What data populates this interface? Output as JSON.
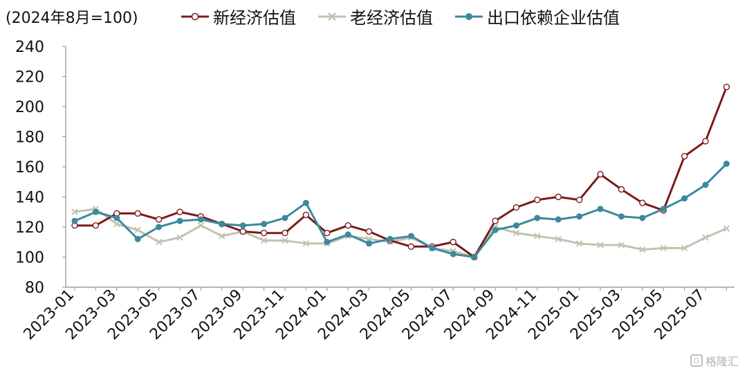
{
  "chart_data": {
    "type": "line",
    "unit_label": "(2024年8月=100)",
    "ylim": [
      80,
      240
    ],
    "yticks": [
      80,
      100,
      120,
      140,
      160,
      180,
      200,
      220,
      240
    ],
    "x": [
      "2023-01",
      "2023-02",
      "2023-03",
      "2023-04",
      "2023-05",
      "2023-06",
      "2023-07",
      "2023-08",
      "2023-09",
      "2023-10",
      "2023-11",
      "2023-12",
      "2024-01",
      "2024-02",
      "2024-03",
      "2024-04",
      "2024-05",
      "2024-06",
      "2024-07",
      "2024-08",
      "2024-09",
      "2024-10",
      "2024-11",
      "2024-12",
      "2025-01",
      "2025-02",
      "2025-03",
      "2025-04",
      "2025-05",
      "2025-06",
      "2025-07",
      "2025-08"
    ],
    "xtick_labels": [
      "2023-01",
      "2023-03",
      "2023-05",
      "2023-07",
      "2023-09",
      "2023-11",
      "2024-01",
      "2024-03",
      "2024-05",
      "2024-07",
      "2024-09",
      "2024-11",
      "2025-01",
      "2025-03",
      "2025-05",
      "2025-07"
    ],
    "grid": false,
    "legend_position": "top",
    "series": [
      {
        "name": "新经济估值",
        "color": "#7b1a1a",
        "marker": "open-circle",
        "values": [
          121,
          121,
          129,
          129,
          125,
          130,
          127,
          122,
          117,
          116,
          116,
          128,
          116,
          121,
          117,
          111,
          107,
          107,
          110,
          100,
          124,
          133,
          138,
          140,
          138,
          155,
          145,
          136,
          131,
          167,
          177,
          213
        ]
      },
      {
        "name": "老经济估值",
        "color": "#c2c2b2",
        "marker": "x",
        "values": [
          130,
          132,
          122,
          118,
          110,
          113,
          121,
          114,
          117,
          111,
          111,
          109,
          109,
          114,
          112,
          110,
          113,
          106,
          104,
          100,
          120,
          116,
          114,
          112,
          109,
          108,
          108,
          105,
          106,
          106,
          113,
          119
        ]
      },
      {
        "name": "出口依赖企业估值",
        "color": "#3a8a9c",
        "marker": "filled-circle",
        "values": [
          124,
          130,
          126,
          112,
          120,
          124,
          125,
          122,
          121,
          122,
          126,
          136,
          110,
          115,
          109,
          112,
          114,
          106,
          102,
          100,
          118,
          121,
          126,
          125,
          127,
          132,
          127,
          126,
          132,
          139,
          148,
          162
        ]
      }
    ]
  },
  "watermark": {
    "text": "格隆汇",
    "icon": "gelonghui-logo-icon"
  }
}
